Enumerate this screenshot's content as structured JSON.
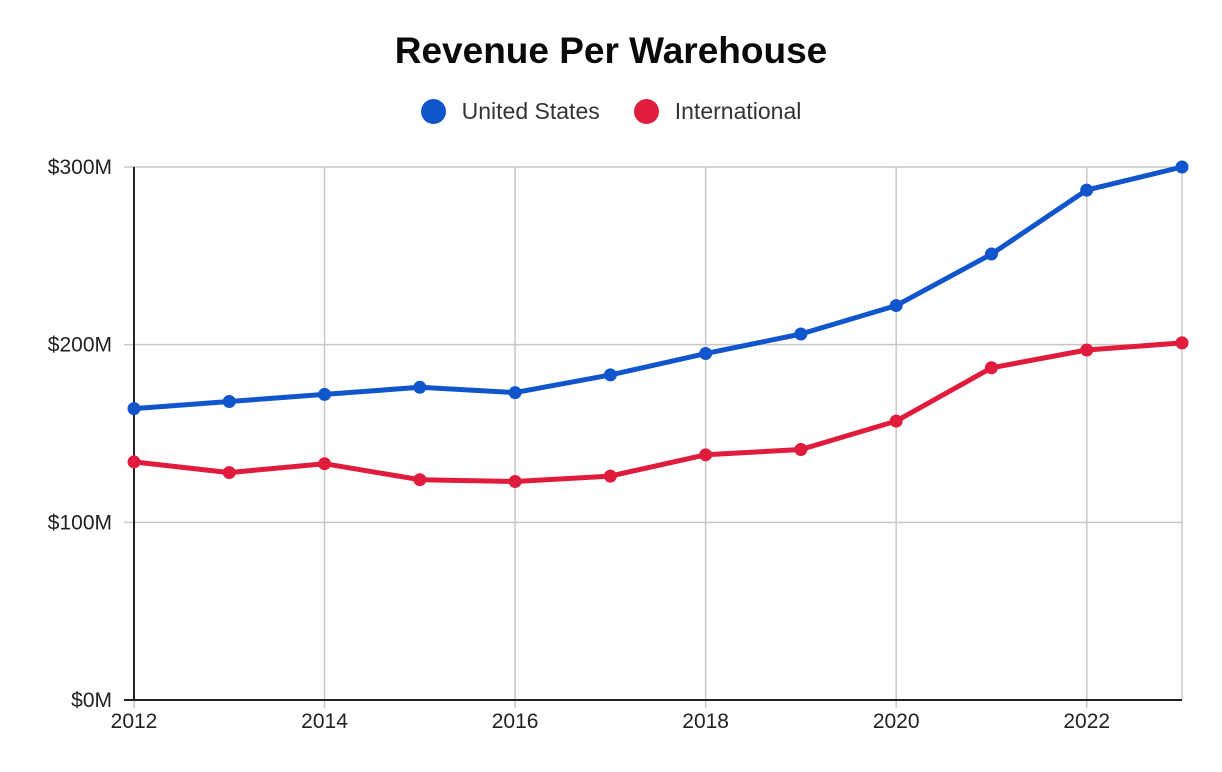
{
  "chart_data": {
    "type": "line",
    "title": "Revenue Per Warehouse",
    "xlabel": "",
    "ylabel": "",
    "x": [
      2012,
      2013,
      2014,
      2015,
      2016,
      2017,
      2018,
      2019,
      2020,
      2021,
      2022,
      2023
    ],
    "xlim": [
      2012,
      2023
    ],
    "ylim": [
      0,
      300
    ],
    "y_unit": "$M",
    "x_ticks": [
      "2012",
      "2014",
      "2016",
      "2018",
      "2020",
      "2022"
    ],
    "y_ticks": [
      "$0M",
      "$100M",
      "$200M",
      "$300M"
    ],
    "grid": true,
    "legend_position": "top-center",
    "series": [
      {
        "name": "United States",
        "color": "#1155CC",
        "values": [
          164,
          168,
          172,
          176,
          173,
          183,
          195,
          206,
          222,
          251,
          287,
          300
        ]
      },
      {
        "name": "International",
        "color": "#E01B3C",
        "values": [
          134,
          128,
          133,
          124,
          123,
          126,
          138,
          141,
          157,
          187,
          197,
          201
        ]
      }
    ]
  }
}
